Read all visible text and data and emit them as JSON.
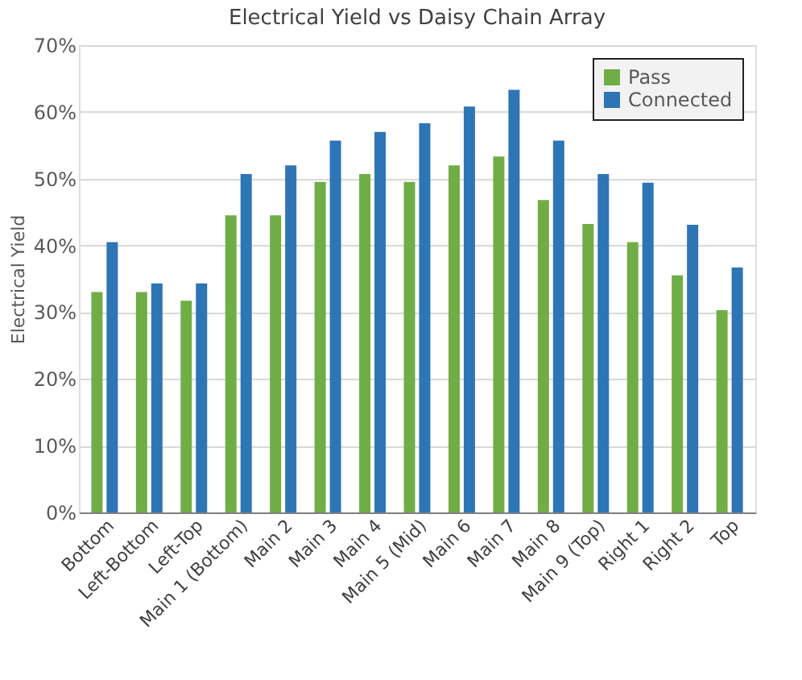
{
  "chart_data": {
    "type": "bar",
    "title": "Electrical Yield vs Daisy Chain Array",
    "ylabel": "Electrical Yield",
    "categories": [
      "Bottom",
      "Left-Bottom",
      "Left-Top",
      "Main 1 (Bottom)",
      "Main 2",
      "Main 3",
      "Main 4",
      "Main 5 (Mid)",
      "Main 6",
      "Main 7",
      "Main 8",
      "Main 9 (Top)",
      "Right 1",
      "Right 2",
      "Top"
    ],
    "series": [
      {
        "name": "Pass",
        "color": "#70ad47",
        "values": [
          33,
          33,
          31.7,
          44.5,
          44.5,
          49.5,
          50.7,
          49.5,
          52,
          53.3,
          46.8,
          43.2,
          40.5,
          35.5,
          30.3
        ]
      },
      {
        "name": "Connected",
        "color": "#2e75b6",
        "values": [
          40.5,
          34.3,
          34.3,
          50.7,
          52,
          55.7,
          57,
          58.3,
          60.8,
          63.3,
          55.7,
          50.7,
          49.4,
          43.1,
          36.7
        ]
      }
    ],
    "ylim": [
      0,
      70
    ],
    "yticks": [
      {
        "value": 0,
        "label": "0%"
      },
      {
        "value": 10,
        "label": "10%"
      },
      {
        "value": 20,
        "label": "20%"
      },
      {
        "value": 30,
        "label": "30%"
      },
      {
        "value": 40,
        "label": "40%"
      },
      {
        "value": 50,
        "label": "50%"
      },
      {
        "value": 60,
        "label": "60%"
      },
      {
        "value": 70,
        "label": "70%"
      }
    ],
    "grid": "y",
    "legend": "top right"
  }
}
